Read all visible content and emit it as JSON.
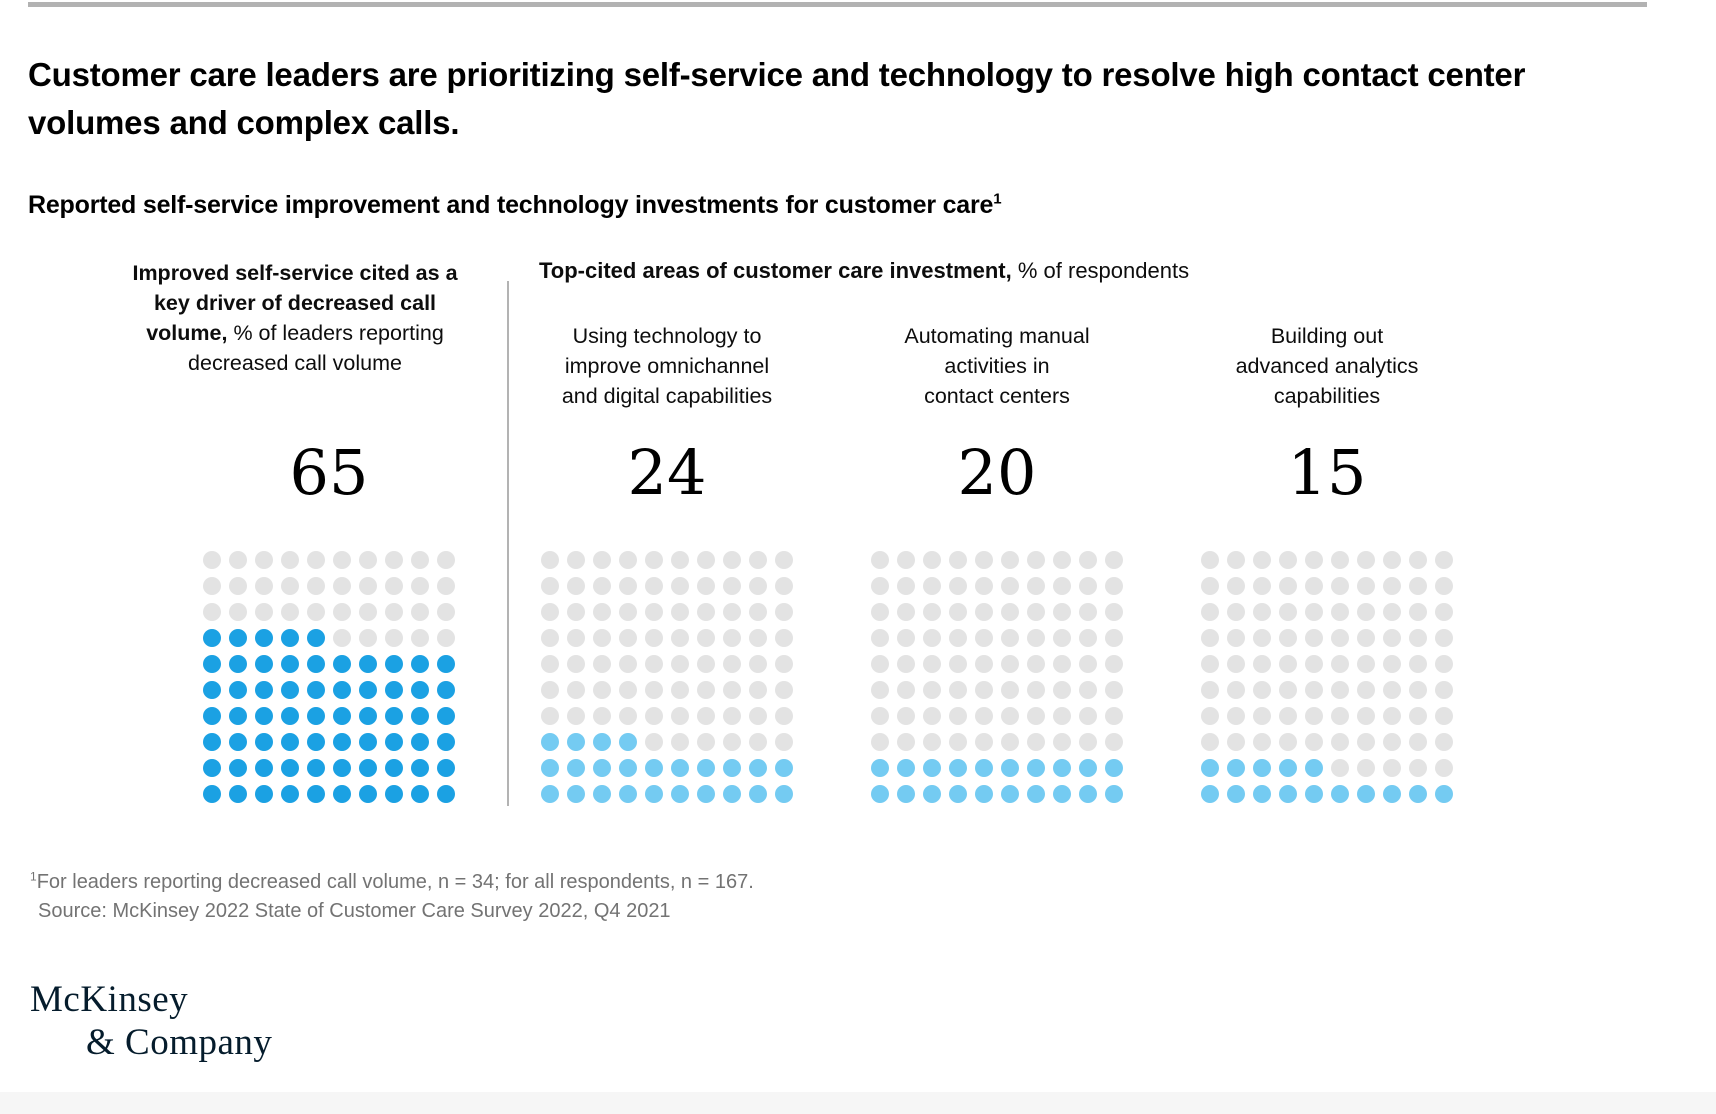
{
  "header": {
    "title": "Customer care leaders are prioritizing self-service and technology to resolve high contact center volumes and complex calls.",
    "subtitle": "Reported self-service improvement and technology investments for customer care",
    "subtitle_footnote_marker": "1"
  },
  "chart_data": {
    "type": "waffle",
    "title": "Reported self-service improvement and technology investments for customer care",
    "grid": {
      "rows": 10,
      "cols": 10,
      "dot_value_pct": 1
    },
    "empty_dot_color": "#E3E3E3",
    "left_panel": {
      "header_bold": "Improved self-service cited as a key driver of decreased call volume,",
      "header_regular": " % of leaders reporting decreased call volume",
      "value": 65,
      "dot_color": "#1BA1E3"
    },
    "right_panel": {
      "header_bold": "Top-cited areas of customer care investment,",
      "header_regular": " % of respondents",
      "charts": [
        {
          "label": "Using technology to improve omnichannel and digital capabilities",
          "label_lines": [
            "Using technology to",
            "improve omnichannel",
            "and digital capabilities"
          ],
          "value": 24,
          "dot_color": "#74CBF2"
        },
        {
          "label": "Automating manual activities in contact centers",
          "label_lines": [
            "Automating manual",
            "activities in",
            "contact centers"
          ],
          "value": 20,
          "dot_color": "#74CBF2"
        },
        {
          "label": "Building out advanced analytics capabilities",
          "label_lines": [
            "Building out",
            "advanced analytics",
            "capabilities"
          ],
          "value": 15,
          "dot_color": "#74CBF2"
        }
      ]
    }
  },
  "footnote": {
    "marker": "1",
    "line1": "For leaders reporting decreased call volume, n = 34; for all respondents, n = 167.",
    "line2": "Source: McKinsey 2022 State of Customer Care Survey 2022, Q4 2021"
  },
  "logo": {
    "line1": "McKinsey",
    "line2": "& Company"
  },
  "colors": {
    "accent_blue": "#1BA1E3",
    "light_blue": "#74CBF2",
    "empty_dot": "#E3E3E3",
    "top_rule": "#B2B2B2",
    "divider": "#B3B3B3",
    "footnote_text": "#737373",
    "logo_text": "#051C2C",
    "bottom_strip": "#F6F6F6"
  }
}
